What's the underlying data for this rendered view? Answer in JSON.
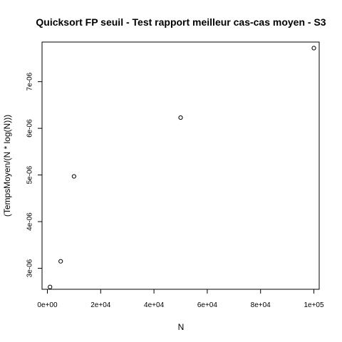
{
  "chart_data": {
    "type": "scatter",
    "title": "Quicksort FP seuil - Test rapport meilleur cas-cas moyen - S3",
    "xlabel": "N",
    "ylabel": "(TempsMoyen/(N * log(N)))",
    "xlim": [
      -2000,
      102000
    ],
    "ylim": [
      2.55e-06,
      7.85e-06
    ],
    "grid": false,
    "x_ticks": [
      {
        "value": 0,
        "label": "0e+00"
      },
      {
        "value": 20000,
        "label": "2e+04"
      },
      {
        "value": 40000,
        "label": "4e+04"
      },
      {
        "value": 60000,
        "label": "6e+04"
      },
      {
        "value": 80000,
        "label": "8e+04"
      },
      {
        "value": 100000,
        "label": "1e+05"
      }
    ],
    "y_ticks": [
      {
        "value": 3e-06,
        "label": "3e-06"
      },
      {
        "value": 4e-06,
        "label": "4e-06"
      },
      {
        "value": 5e-06,
        "label": "5e-06"
      },
      {
        "value": 6e-06,
        "label": "6e-06"
      },
      {
        "value": 7e-06,
        "label": "7e-06"
      }
    ],
    "series": [
      {
        "points": [
          {
            "x": 1000,
            "y": 2.6e-06
          },
          {
            "x": 5000,
            "y": 3.15e-06
          },
          {
            "x": 10000,
            "y": 4.97e-06
          },
          {
            "x": 50000,
            "y": 6.23e-06
          },
          {
            "x": 100000,
            "y": 7.72e-06
          }
        ],
        "marker": "open-circle",
        "color": "#000000"
      }
    ]
  }
}
